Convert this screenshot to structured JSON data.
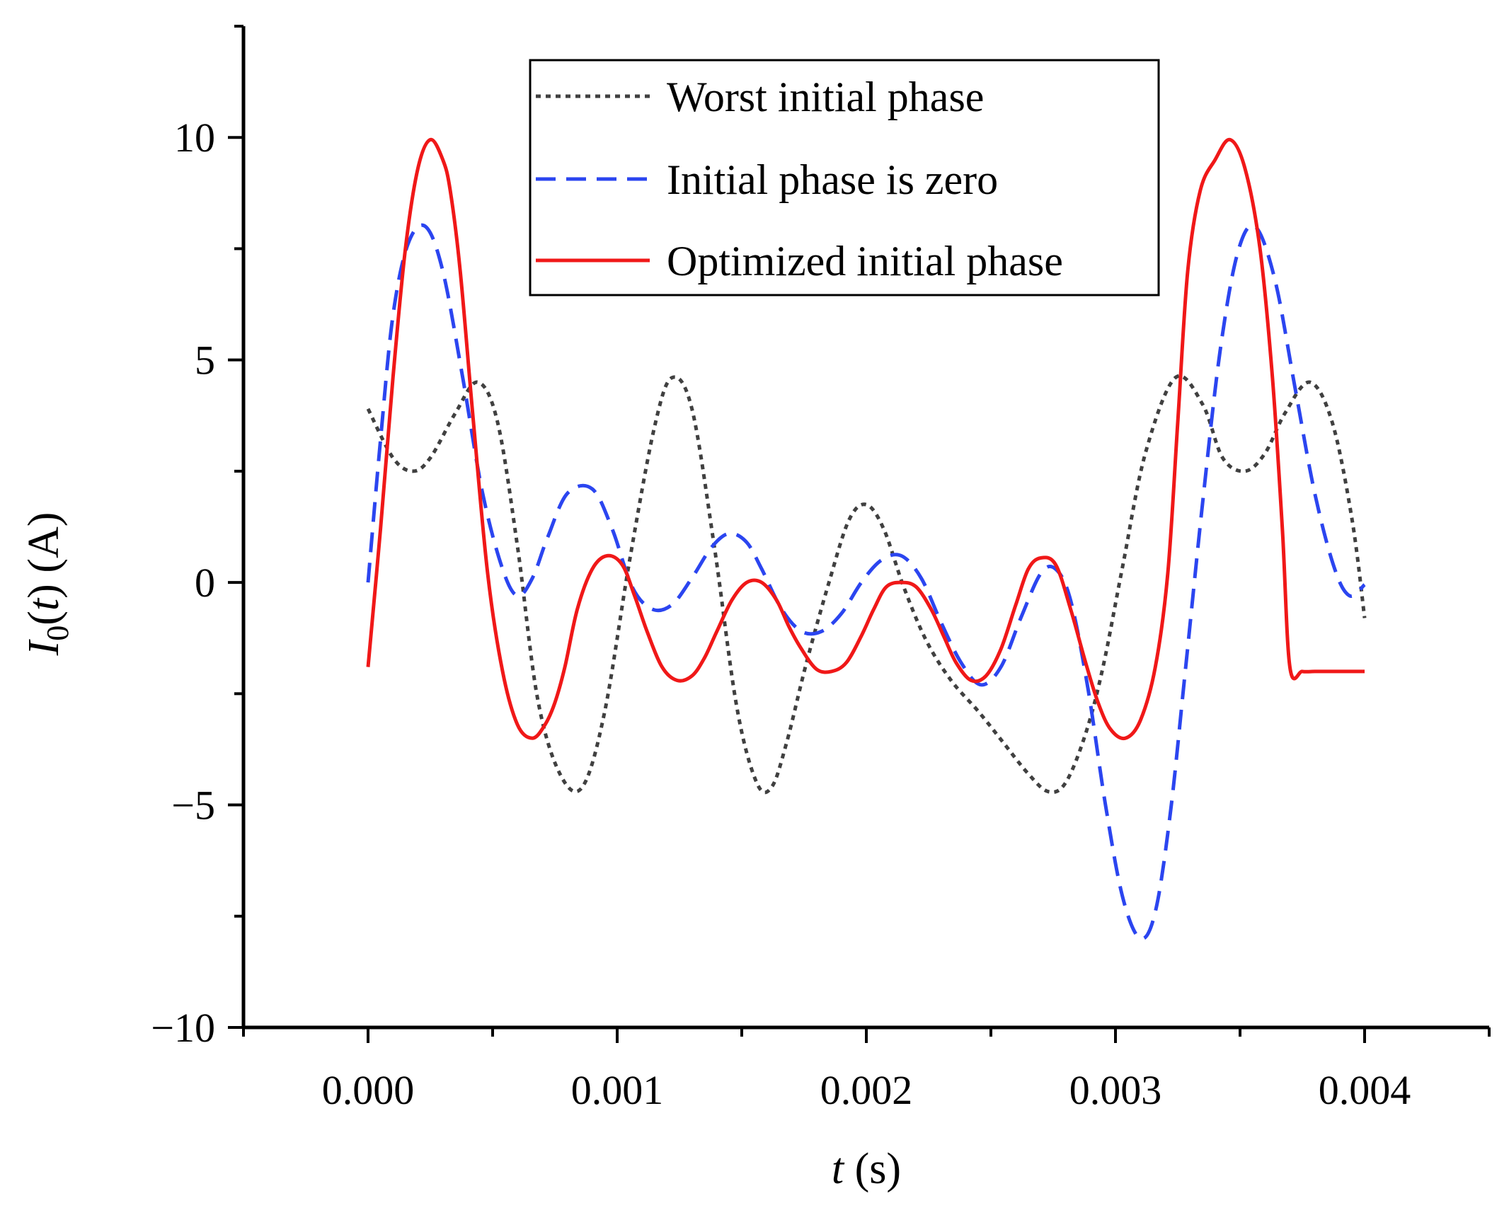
{
  "chart_data": {
    "type": "line",
    "title": "",
    "xlabel_var": "t",
    "xlabel_unit": " (s)",
    "ylabel_var": "I",
    "ylabel_sub": "0",
    "ylabel_paren_open": "(",
    "ylabel_arg": "t",
    "ylabel_rest": ") (A)",
    "xlim": [
      -0.0005,
      0.0045
    ],
    "ylim": [
      -10,
      12.5
    ],
    "x_ticks": [
      0.0,
      0.001,
      0.002,
      0.003,
      0.004
    ],
    "x_tick_labels": [
      "0.000",
      "0.001",
      "0.002",
      "0.003",
      "0.004"
    ],
    "x_minor_ticks": [
      -0.0005,
      0.0005,
      0.0015,
      0.0025,
      0.0035,
      0.0045
    ],
    "y_ticks": [
      -10,
      -5,
      0,
      5,
      10
    ],
    "y_tick_labels": [
      "−10",
      "−5",
      "0",
      "5",
      "10"
    ],
    "legend_position": "top-center",
    "series": [
      {
        "name": "Worst initial phase",
        "color": "#404040",
        "style": "dotted",
        "x": [
          0.0,
          0.0001,
          0.00018,
          0.00025,
          0.00035,
          0.00044,
          0.00052,
          0.0006,
          0.00068,
          0.00077,
          0.00086,
          0.00095,
          0.00105,
          0.00115,
          0.00122,
          0.0013,
          0.00139,
          0.00148,
          0.00156,
          0.00162,
          0.00168,
          0.00176,
          0.00185,
          0.00193,
          0.002,
          0.00207,
          0.00215,
          0.00224,
          0.00234,
          0.00245,
          0.00255,
          0.00265,
          0.00273,
          0.0028,
          0.00288,
          0.00295,
          0.00303,
          0.00312,
          0.00324,
          0.00335,
          0.00343,
          0.00352,
          0.0036,
          0.00368,
          0.00378,
          0.00387,
          0.00395,
          0.004
        ],
        "y": [
          3.9,
          2.8,
          2.5,
          2.8,
          3.8,
          4.5,
          3.6,
          0.8,
          -2.6,
          -4.3,
          -4.6,
          -2.9,
          0.5,
          3.5,
          4.6,
          3.9,
          0.8,
          -2.8,
          -4.5,
          -4.6,
          -3.6,
          -1.8,
          0.0,
          1.4,
          1.75,
          1.2,
          -0.1,
          -1.3,
          -2.2,
          -2.9,
          -3.6,
          -4.3,
          -4.7,
          -4.5,
          -3.4,
          -1.9,
          0.4,
          2.9,
          4.6,
          4.0,
          2.8,
          2.5,
          2.9,
          3.8,
          4.5,
          3.6,
          1.4,
          -0.8
        ]
      },
      {
        "name": "Initial phase is zero",
        "color": "#2b45f0",
        "style": "dashed",
        "x": [
          0.0,
          5e-05,
          0.0001,
          0.00016,
          0.00023,
          0.0003,
          0.00038,
          0.00046,
          0.00054,
          0.0006,
          0.00066,
          0.00072,
          0.0008,
          0.0009,
          0.00098,
          0.00106,
          0.00114,
          0.00122,
          0.0013,
          0.00138,
          0.00145,
          0.00152,
          0.00158,
          0.00166,
          0.00174,
          0.00182,
          0.0019,
          0.00198,
          0.00206,
          0.00214,
          0.00222,
          0.0023,
          0.00238,
          0.00246,
          0.00254,
          0.00262,
          0.0027,
          0.00276,
          0.00282,
          0.00289,
          0.00296,
          0.00303,
          0.0031,
          0.00316,
          0.00322,
          0.00328,
          0.00335,
          0.00342,
          0.00349,
          0.00356,
          0.00364,
          0.00372,
          0.0038,
          0.00388,
          0.00394,
          0.004
        ],
        "y": [
          0.0,
          3.2,
          6.0,
          7.6,
          8.0,
          7.0,
          4.6,
          2.0,
          0.3,
          -0.3,
          0.1,
          1.0,
          2.0,
          2.1,
          1.2,
          -0.1,
          -0.6,
          -0.5,
          0.1,
          0.8,
          1.1,
          0.9,
          0.3,
          -0.6,
          -1.1,
          -1.1,
          -0.7,
          0.0,
          0.5,
          0.6,
          0.1,
          -0.9,
          -1.8,
          -2.3,
          -1.9,
          -0.8,
          0.2,
          0.3,
          -0.4,
          -2.4,
          -5.0,
          -7.1,
          -8.0,
          -7.4,
          -5.2,
          -2.0,
          1.8,
          5.2,
          7.4,
          8.0,
          6.8,
          4.4,
          2.0,
          0.3,
          -0.3,
          -0.05
        ]
      },
      {
        "name": "Optimized initial phase",
        "color": "#f01818",
        "style": "solid",
        "x": [
          0.0,
          5e-05,
          0.0001,
          0.00015,
          0.0002,
          0.00025,
          0.0003,
          0.00033,
          0.00037,
          0.00042,
          0.00048,
          0.00054,
          0.0006,
          0.00066,
          0.00071,
          0.00075,
          0.00079,
          0.00084,
          0.0009,
          0.00096,
          0.00102,
          0.00107,
          0.00112,
          0.00118,
          0.00124,
          0.0013,
          0.00135,
          0.0014,
          0.00146,
          0.00152,
          0.00158,
          0.00164,
          0.00169,
          0.00174,
          0.0018,
          0.00186,
          0.00192,
          0.00198,
          0.00203,
          0.00208,
          0.00214,
          0.0022,
          0.00226,
          0.00231,
          0.00236,
          0.00242,
          0.00248,
          0.00254,
          0.0026,
          0.00265,
          0.0027,
          0.00276,
          0.00282,
          0.00288,
          0.00293,
          0.00298,
          0.00304,
          0.0031,
          0.00316,
          0.00321,
          0.00325,
          0.00329,
          0.00334,
          0.0034,
          0.00346,
          0.00352,
          0.00358,
          0.00363,
          0.00367,
          0.0037,
          0.00375,
          0.0038,
          0.00385,
          0.0039,
          0.00395,
          0.004
        ],
        "y": [
          -1.9,
          1.2,
          4.6,
          7.5,
          9.3,
          9.95,
          9.5,
          8.8,
          7.0,
          3.8,
          0.2,
          -2.0,
          -3.2,
          -3.5,
          -3.2,
          -2.7,
          -1.9,
          -0.6,
          0.3,
          0.6,
          0.4,
          -0.3,
          -1.1,
          -1.9,
          -2.2,
          -2.1,
          -1.7,
          -1.1,
          -0.4,
          0.0,
          0.0,
          -0.4,
          -1.0,
          -1.5,
          -1.95,
          -2.0,
          -1.8,
          -1.2,
          -0.6,
          -0.1,
          0.0,
          -0.1,
          -0.6,
          -1.2,
          -1.8,
          -2.2,
          -2.1,
          -1.5,
          -0.5,
          0.3,
          0.55,
          0.4,
          -0.6,
          -1.8,
          -2.7,
          -3.3,
          -3.5,
          -3.1,
          -1.9,
          0.2,
          3.6,
          7.0,
          8.8,
          9.5,
          9.95,
          9.3,
          7.5,
          4.6,
          1.2,
          -1.9,
          -2.0,
          -2.0,
          -2.0,
          -2.0,
          -2.0,
          -2.0
        ]
      }
    ]
  }
}
